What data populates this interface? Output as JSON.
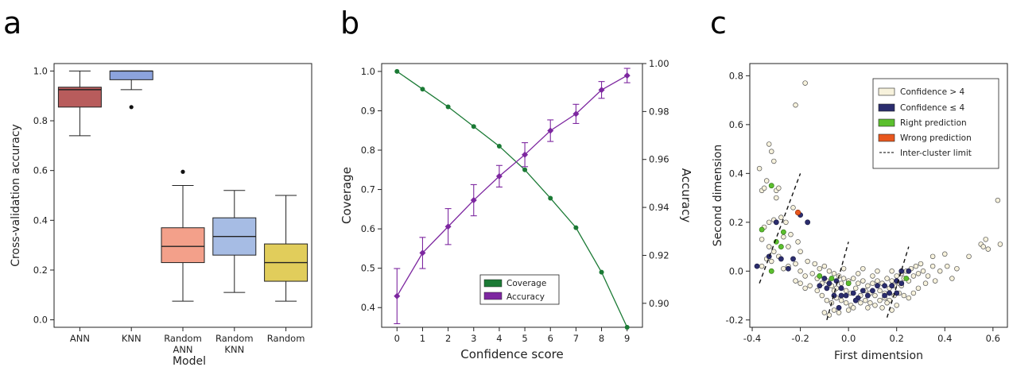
{
  "panels": {
    "a": "a",
    "b": "b",
    "c": "c"
  },
  "chart_data": [
    {
      "type": "box",
      "panel": "a",
      "xlabel": "Model",
      "ylabel": "Cross-validation accuracy",
      "ylim": [
        -0.03,
        1.03
      ],
      "yticks": [
        "0.0",
        "0.2",
        "0.4",
        "0.6",
        "0.8",
        "1.0"
      ],
      "grid": false,
      "categories": [
        "ANN",
        "KNN",
        "Random\nANN",
        "Random\nKNN",
        "Random"
      ],
      "boxes": [
        {
          "label": "ANN",
          "color": "#b85c5c",
          "whislo": 0.74,
          "q1": 0.855,
          "med": 0.925,
          "q3": 0.935,
          "whishi": 1.0,
          "fliers": []
        },
        {
          "label": "KNN",
          "color": "#8ca3dd",
          "whislo": 0.925,
          "q1": 0.965,
          "med": 1.0,
          "q3": 1.0,
          "whishi": 1.0,
          "fliers": [
            0.855
          ]
        },
        {
          "label": "Random\nANN",
          "color": "#f3a08a",
          "whislo": 0.075,
          "q1": 0.23,
          "med": 0.295,
          "q3": 0.37,
          "whishi": 0.54,
          "fliers": [
            0.595
          ]
        },
        {
          "label": "Random\nKNN",
          "color": "#a6bce4",
          "whislo": 0.11,
          "q1": 0.26,
          "med": 0.335,
          "q3": 0.41,
          "whishi": 0.52,
          "fliers": []
        },
        {
          "label": "Random",
          "color": "#e1cd5b",
          "whislo": 0.075,
          "q1": 0.155,
          "med": 0.23,
          "q3": 0.305,
          "whishi": 0.5,
          "fliers": []
        }
      ]
    },
    {
      "type": "line",
      "panel": "b",
      "xlabel": "Confidence score",
      "ylabel": "Coverage",
      "ylabel_right": "Accuracy",
      "x": [
        0,
        1,
        2,
        3,
        4,
        5,
        6,
        7,
        8,
        9
      ],
      "ylim_left": [
        0.35,
        1.02
      ],
      "ylim_right": [
        0.89,
        1.0
      ],
      "yticks_left": [
        "0.4",
        "0.5",
        "0.6",
        "0.7",
        "0.8",
        "0.9",
        "1.0"
      ],
      "yticks_right": [
        "0.90",
        "0.92",
        "0.94",
        "0.96",
        "0.98",
        "1.00"
      ],
      "grid": false,
      "legend_position": "lower-right",
      "series": [
        {
          "name": "Coverage",
          "axis": "left",
          "color": "#1b7a35",
          "marker": "circle",
          "values": [
            1.0,
            0.955,
            0.91,
            0.86,
            0.81,
            0.75,
            0.678,
            0.603,
            0.49,
            0.35
          ]
        },
        {
          "name": "Accuracy",
          "axis": "right",
          "color": "#7d27a0",
          "marker": "diamond",
          "values": [
            0.903,
            0.921,
            0.932,
            0.943,
            0.953,
            0.962,
            0.972,
            0.979,
            0.989,
            0.995
          ],
          "errors": [
            0.0115,
            0.0065,
            0.0075,
            0.0065,
            0.0045,
            0.005,
            0.0045,
            0.004,
            0.0035,
            0.003
          ]
        }
      ]
    },
    {
      "type": "scatter",
      "panel": "c",
      "xlabel": "First dimentsion",
      "ylabel": "Second dimension",
      "xlim": [
        -0.41,
        0.66
      ],
      "ylim": [
        -0.23,
        0.85
      ],
      "xticks": [
        "-0.4",
        "-0.2",
        "0.0",
        "0.2",
        "0.4",
        "0.6"
      ],
      "yticks": [
        "-0.2",
        "0.0",
        "0.2",
        "0.4",
        "0.6",
        "0.8"
      ],
      "grid": false,
      "legend_position": "top-right",
      "legend": [
        {
          "label": "Confidence > 4",
          "color": "#f7f2dc",
          "kind": "patch"
        },
        {
          "label": "Confidence ≤ 4",
          "color": "#2b2d6e",
          "kind": "patch"
        },
        {
          "label": "Right prediction",
          "color": "#5bbf2e",
          "kind": "patch"
        },
        {
          "label": "Wrong prediction",
          "color": "#e8571e",
          "kind": "patch"
        },
        {
          "label": "Inter-cluster limit",
          "color": "#333333",
          "kind": "dashed-line"
        }
      ],
      "limits": [
        {
          "x1": -0.37,
          "y1": -0.05,
          "x2": -0.2,
          "y2": 0.4
        },
        {
          "x1": -0.09,
          "y1": -0.2,
          "x2": 0.0,
          "y2": 0.12
        },
        {
          "x1": 0.16,
          "y1": -0.19,
          "x2": 0.25,
          "y2": 0.1
        }
      ],
      "points": {
        "high_conf": [
          [
            -0.37,
            0.42
          ],
          [
            -0.36,
            0.33
          ],
          [
            -0.35,
            0.34
          ],
          [
            -0.34,
            0.37
          ],
          [
            -0.33,
            0.52
          ],
          [
            -0.32,
            0.49
          ],
          [
            -0.31,
            0.45
          ],
          [
            -0.3,
            0.33
          ],
          [
            -0.29,
            0.34
          ],
          [
            -0.3,
            0.3
          ],
          [
            -0.33,
            0.2
          ],
          [
            -0.31,
            0.21
          ],
          [
            -0.35,
            0.18
          ],
          [
            -0.27,
            0.14
          ],
          [
            -0.25,
            0.1
          ],
          [
            -0.36,
            0.13
          ],
          [
            -0.33,
            0.1
          ],
          [
            -0.31,
            0.08
          ],
          [
            -0.29,
            0.06
          ],
          [
            -0.36,
            0.02
          ],
          [
            -0.34,
            0.05
          ],
          [
            -0.32,
            0.04
          ],
          [
            -0.27,
            0.01
          ],
          [
            -0.25,
            0.02
          ],
          [
            -0.22,
            0.03
          ],
          [
            -0.2,
            0.0
          ],
          [
            -0.18,
            -0.02
          ],
          [
            -0.15,
            -0.01
          ],
          [
            -0.13,
            -0.03
          ],
          [
            -0.11,
            -0.05
          ],
          [
            -0.09,
            -0.04
          ],
          [
            -0.07,
            -0.06
          ],
          [
            -0.05,
            -0.07
          ],
          [
            -0.03,
            -0.05
          ],
          [
            -0.01,
            -0.08
          ],
          [
            0.01,
            -0.09
          ],
          [
            0.03,
            -0.07
          ],
          [
            0.05,
            -0.1
          ],
          [
            0.07,
            -0.08
          ],
          [
            0.09,
            -0.09
          ],
          [
            0.11,
            -0.1
          ],
          [
            0.13,
            -0.08
          ],
          [
            0.15,
            -0.09
          ],
          [
            0.17,
            -0.07
          ],
          [
            0.19,
            -0.06
          ],
          [
            0.21,
            -0.05
          ],
          [
            0.23,
            -0.03
          ],
          [
            0.25,
            -0.04
          ],
          [
            0.27,
            -0.02
          ],
          [
            0.29,
            -0.01
          ],
          [
            0.31,
            0.0
          ],
          [
            0.33,
            -0.02
          ],
          [
            0.35,
            0.02
          ],
          [
            0.38,
            0.0
          ],
          [
            0.41,
            0.02
          ],
          [
            0.45,
            0.01
          ],
          [
            0.5,
            0.06
          ],
          [
            0.55,
            0.11
          ],
          [
            0.56,
            0.1
          ],
          [
            0.58,
            0.09
          ],
          [
            0.57,
            0.13
          ],
          [
            0.62,
            0.29
          ],
          [
            0.63,
            0.11
          ],
          [
            -0.22,
            0.68
          ],
          [
            -0.18,
            0.77
          ],
          [
            -0.23,
            0.26
          ],
          [
            -0.26,
            0.2
          ],
          [
            -0.28,
            0.22
          ],
          [
            -0.24,
            0.15
          ],
          [
            -0.21,
            0.12
          ],
          [
            -0.2,
            0.08
          ],
          [
            -0.17,
            0.04
          ],
          [
            -0.14,
            0.03
          ],
          [
            -0.12,
            0.01
          ],
          [
            -0.1,
            0.02
          ],
          [
            -0.08,
            0.0
          ],
          [
            -0.06,
            -0.01
          ],
          [
            -0.04,
            -0.02
          ],
          [
            -0.02,
            -0.03
          ],
          [
            0.0,
            -0.04
          ],
          [
            0.02,
            -0.03
          ],
          [
            0.04,
            -0.05
          ],
          [
            0.06,
            -0.04
          ],
          [
            0.08,
            -0.06
          ],
          [
            0.1,
            -0.05
          ],
          [
            0.12,
            -0.04
          ],
          [
            0.14,
            -0.05
          ],
          [
            0.16,
            -0.03
          ],
          [
            0.18,
            -0.04
          ],
          [
            0.2,
            -0.02
          ],
          [
            0.22,
            -0.01
          ],
          [
            0.24,
            0.0
          ],
          [
            0.26,
            0.01
          ],
          [
            0.28,
            0.02
          ],
          [
            0.3,
            0.03
          ],
          [
            -0.13,
            -0.08
          ],
          [
            -0.11,
            -0.1
          ],
          [
            -0.09,
            -0.12
          ],
          [
            -0.07,
            -0.13
          ],
          [
            -0.05,
            -0.11
          ],
          [
            -0.03,
            -0.12
          ],
          [
            -0.01,
            -0.13
          ],
          [
            0.01,
            -0.14
          ],
          [
            0.03,
            -0.12
          ],
          [
            0.05,
            -0.13
          ],
          [
            0.07,
            -0.12
          ],
          [
            0.09,
            -0.13
          ],
          [
            0.11,
            -0.14
          ],
          [
            0.13,
            -0.12
          ],
          [
            0.15,
            -0.11
          ],
          [
            0.17,
            -0.12
          ],
          [
            0.19,
            -0.1
          ],
          [
            0.21,
            -0.09
          ],
          [
            0.23,
            -0.1
          ],
          [
            0.25,
            -0.11
          ],
          [
            0.27,
            -0.09
          ],
          [
            0.29,
            -0.07
          ],
          [
            -0.1,
            -0.17
          ],
          [
            -0.08,
            -0.18
          ],
          [
            -0.06,
            -0.16
          ],
          [
            -0.04,
            -0.17
          ],
          [
            0.0,
            -0.16
          ],
          [
            0.02,
            -0.15
          ],
          [
            0.08,
            -0.15
          ],
          [
            0.14,
            -0.15
          ],
          [
            0.18,
            -0.16
          ],
          [
            0.2,
            -0.14
          ],
          [
            -0.16,
            -0.06
          ],
          [
            -0.18,
            -0.07
          ],
          [
            -0.2,
            -0.05
          ],
          [
            -0.22,
            -0.04
          ],
          [
            0.35,
            0.06
          ],
          [
            0.4,
            0.07
          ],
          [
            0.43,
            -0.03
          ],
          [
            0.32,
            -0.05
          ],
          [
            0.36,
            -0.04
          ],
          [
            0.12,
            0.0
          ],
          [
            0.06,
            0.01
          ],
          [
            -0.02,
            0.01
          ],
          [
            0.1,
            -0.02
          ],
          [
            0.04,
            -0.01
          ],
          [
            -0.06,
            -0.08
          ],
          [
            0.18,
            0.0
          ],
          [
            0.22,
            -0.06
          ],
          [
            0.16,
            -0.13
          ]
        ],
        "low_conf_right": [
          [
            -0.32,
            0.35
          ],
          [
            -0.36,
            0.17
          ],
          [
            -0.27,
            0.16
          ],
          [
            -0.3,
            0.12
          ],
          [
            -0.28,
            0.1
          ],
          [
            -0.32,
            0.0
          ],
          [
            -0.07,
            -0.03
          ],
          [
            0.0,
            -0.05
          ],
          [
            -0.12,
            -0.02
          ],
          [
            0.24,
            -0.03
          ]
        ],
        "low_conf_other": [
          [
            -0.2,
            0.23
          ],
          [
            -0.17,
            0.2
          ],
          [
            -0.3,
            0.2
          ],
          [
            -0.33,
            0.06
          ],
          [
            -0.38,
            0.02
          ],
          [
            -0.28,
            0.05
          ],
          [
            -0.23,
            0.05
          ],
          [
            -0.25,
            0.01
          ],
          [
            -0.1,
            -0.03
          ],
          [
            -0.08,
            -0.05
          ],
          [
            -0.05,
            -0.04
          ],
          [
            -0.03,
            -0.07
          ],
          [
            -0.06,
            -0.1
          ],
          [
            -0.03,
            -0.1
          ],
          [
            0.02,
            -0.09
          ],
          [
            0.04,
            -0.11
          ],
          [
            0.06,
            -0.08
          ],
          [
            -0.01,
            -0.1
          ],
          [
            0.1,
            -0.08
          ],
          [
            0.15,
            -0.06
          ],
          [
            0.18,
            -0.06
          ],
          [
            0.2,
            -0.04
          ],
          [
            0.22,
            -0.05
          ],
          [
            0.22,
            0.0
          ],
          [
            0.25,
            0.0
          ],
          [
            0.17,
            -0.09
          ],
          [
            0.12,
            -0.06
          ],
          [
            -0.12,
            -0.06
          ],
          [
            -0.09,
            -0.07
          ],
          [
            0.08,
            -0.1
          ],
          [
            0.15,
            -0.1
          ],
          [
            0.2,
            -0.09
          ],
          [
            -0.04,
            -0.15
          ],
          [
            0.03,
            -0.12
          ]
        ],
        "wrong": [
          [
            -0.21,
            0.24
          ]
        ]
      }
    }
  ],
  "colors": {
    "high_conf": "#f7f2dc",
    "low_conf": "#2b2d6e",
    "right": "#5bbf2e",
    "wrong": "#e8571e"
  }
}
